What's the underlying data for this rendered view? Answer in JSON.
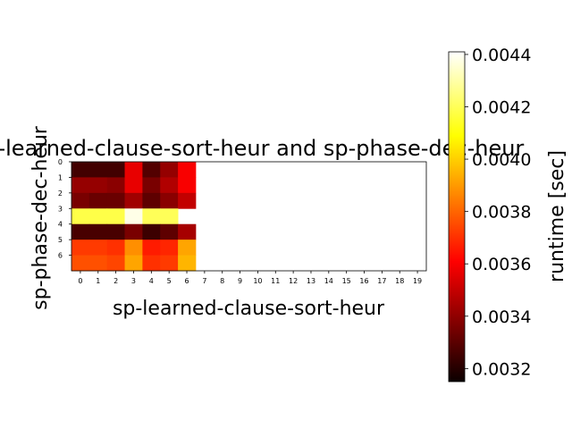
{
  "chart_data": {
    "type": "heatmap",
    "title": "sp-learned-clause-sort-heur and sp-phase-dec-heur",
    "xlabel": "sp-learned-clause-sort-heur",
    "ylabel": "sp-phase-dec-heur",
    "x_ticks": [
      "0",
      "1",
      "2",
      "3",
      "4",
      "5",
      "6",
      "7",
      "8",
      "9",
      "10",
      "11",
      "12",
      "13",
      "14",
      "15",
      "16",
      "17",
      "18",
      "19"
    ],
    "y_ticks": [
      "0",
      "1",
      "2",
      "3",
      "4",
      "5",
      "6"
    ],
    "colorbar": {
      "label": "runtime [sec]",
      "colormap": "hot",
      "range": [
        0.00315,
        0.00441
      ],
      "ticks": [
        "0.0032",
        "0.0034",
        "0.0036",
        "0.0038",
        "0.0040",
        "0.0042",
        "0.0044"
      ],
      "tick_values": [
        0.0032,
        0.0034,
        0.0036,
        0.0038,
        0.004,
        0.0042,
        0.0044
      ]
    },
    "values": [
      [
        0.00325,
        0.00325,
        0.00325,
        0.00355,
        0.00328,
        0.0034,
        0.00358,
        null,
        null,
        null,
        null,
        null,
        null,
        null,
        null,
        null,
        null,
        null,
        null,
        null
      ],
      [
        0.0034,
        0.0034,
        0.00338,
        0.00355,
        0.00335,
        0.00345,
        0.00358,
        null,
        null,
        null,
        null,
        null,
        null,
        null,
        null,
        null,
        null,
        null,
        null,
        null
      ],
      [
        0.00335,
        0.00332,
        0.00332,
        0.00342,
        0.0033,
        0.00338,
        0.00348,
        null,
        null,
        null,
        null,
        null,
        null,
        null,
        null,
        null,
        null,
        null,
        null,
        null
      ],
      [
        0.00418,
        0.00418,
        0.00418,
        0.00438,
        0.0042,
        0.0042,
        null,
        null,
        null,
        null,
        null,
        null,
        null,
        null,
        null,
        null,
        null,
        null,
        null,
        null
      ],
      [
        0.00326,
        0.00326,
        0.00326,
        0.00335,
        0.00324,
        0.0033,
        0.00343,
        null,
        null,
        null,
        null,
        null,
        null,
        null,
        null,
        null,
        null,
        null,
        null,
        null
      ],
      [
        0.00372,
        0.00372,
        0.0037,
        0.00388,
        0.00366,
        0.00368,
        0.00392,
        null,
        null,
        null,
        null,
        null,
        null,
        null,
        null,
        null,
        null,
        null,
        null,
        null
      ],
      [
        0.00376,
        0.00376,
        0.00374,
        0.00392,
        0.0037,
        0.00372,
        0.00395,
        null,
        null,
        null,
        null,
        null,
        null,
        null,
        null,
        null,
        null,
        null,
        null,
        null
      ]
    ]
  }
}
